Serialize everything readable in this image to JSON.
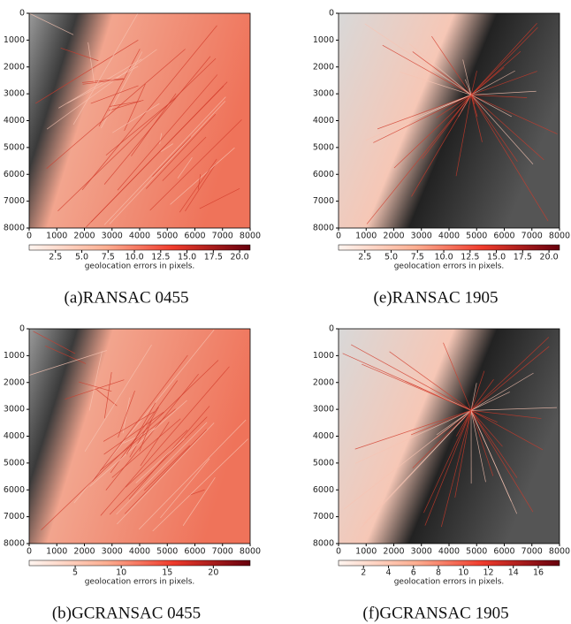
{
  "panels": [
    {
      "caption": "(a)RANSAC 0455",
      "xlim": [
        0,
        8000
      ],
      "ylim": [
        0,
        8000
      ],
      "xticks": [
        0,
        1000,
        2000,
        3000,
        4000,
        5000,
        6000,
        7000,
        8000
      ],
      "yticks": [
        0,
        1000,
        2000,
        3000,
        4000,
        5000,
        6000,
        7000,
        8000
      ],
      "colorbar": {
        "label": "geolocation errors in pixels.",
        "lim": [
          0,
          21
        ],
        "ticks": [
          2.5,
          {
            "value": 5,
            "label": "5.0"
          },
          7.5,
          {
            "value": 10,
            "label": "10.0"
          },
          12.5,
          {
            "value": 15,
            "label": "15.0"
          },
          17.5,
          {
            "value": 20,
            "label": "20.0"
          }
        ]
      }
    },
    {
      "caption": "(e)RANSAC 1905",
      "xlim": [
        0,
        8000
      ],
      "ylim": [
        0,
        8000
      ],
      "xticks": [
        0,
        1000,
        2000,
        3000,
        4000,
        5000,
        6000,
        7000,
        8000
      ],
      "yticks": [
        0,
        1000,
        2000,
        3000,
        4000,
        5000,
        6000,
        7000,
        8000
      ],
      "colorbar": {
        "label": "geolocation errors in pixels.",
        "lim": [
          0,
          21
        ],
        "ticks": [
          2.5,
          {
            "value": 5,
            "label": "5.0"
          },
          7.5,
          {
            "value": 10,
            "label": "10.0"
          },
          12.5,
          {
            "value": 15,
            "label": "15.0"
          },
          17.5,
          {
            "value": 20,
            "label": "20.0"
          }
        ]
      }
    },
    {
      "caption": "(b)GCRANSAC 0455",
      "xlim": [
        0,
        8000
      ],
      "ylim": [
        0,
        8000
      ],
      "xticks": [
        0,
        1000,
        2000,
        3000,
        4000,
        5000,
        6000,
        7000,
        8000
      ],
      "yticks": [
        0,
        1000,
        2000,
        3000,
        4000,
        5000,
        6000,
        7000,
        8000
      ],
      "colorbar": {
        "label": "geolocation errors in pixels.",
        "lim": [
          0,
          24
        ],
        "ticks": [
          5,
          10,
          15,
          20
        ]
      }
    },
    {
      "caption": "(f)GCRANSAC 1905",
      "xlim": [
        0,
        8000
      ],
      "ylim": [
        0,
        8000
      ],
      "xticks": [
        0,
        1000,
        2000,
        3000,
        4000,
        5000,
        6000,
        7000,
        8000
      ],
      "yticks": [
        0,
        1000,
        2000,
        3000,
        4000,
        5000,
        6000,
        7000,
        8000
      ],
      "colorbar": {
        "label": "geolocation errors in pixels.",
        "lim": [
          0,
          17.7
        ],
        "ticks": [
          2,
          4,
          6,
          8,
          10,
          12,
          14,
          16
        ]
      }
    }
  ]
}
